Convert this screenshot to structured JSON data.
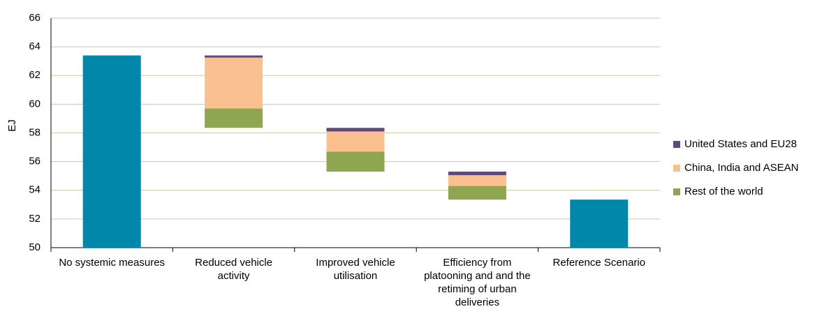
{
  "chart_data": {
    "type": "waterfall",
    "y_label": "EJ",
    "categories": [
      "No systemic measures",
      "Reduced vehicle activity",
      "Improved vehicle utilisation",
      "Efficiency from platooning and and the retiming of urban deliveries",
      "Reference Scenario"
    ],
    "totals": [
      63.4,
      null,
      null,
      null,
      53.35
    ],
    "totals_color": "#0087a9",
    "series": [
      {
        "name": "Rest of the world",
        "color": "#8ea650",
        "values": [
          null,
          1.35,
          1.4,
          0.95,
          null
        ]
      },
      {
        "name": "China, India and ASEAN",
        "color": "#fac090",
        "values": [
          null,
          3.55,
          1.4,
          0.75,
          null
        ]
      },
      {
        "name": "United States and EU28",
        "color": "#604a7b",
        "values": [
          null,
          0.15,
          0.25,
          0.25,
          null
        ]
      }
    ],
    "ylim": [
      50,
      66
    ],
    "yticks": [
      50,
      52,
      54,
      56,
      58,
      60,
      62,
      64,
      66
    ],
    "grid": true,
    "legend": "right"
  }
}
